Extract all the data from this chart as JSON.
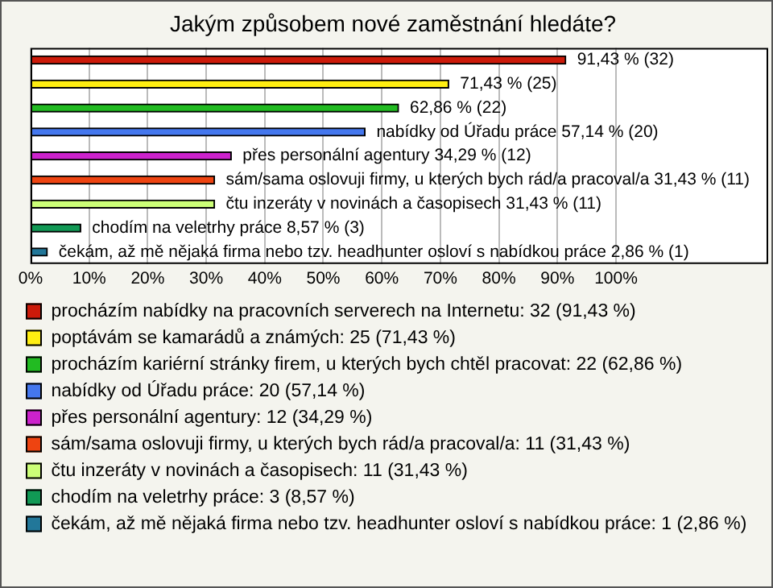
{
  "chart_data": {
    "type": "bar",
    "orientation": "horizontal",
    "title": "Jakým způsobem nové zaměstnání hledáte?",
    "categories": [
      null,
      null,
      null,
      null,
      null,
      null,
      null,
      null,
      null
    ],
    "series": [
      {
        "name": "procházím nabídky na pracovních serverech na Internetu: 32 (91,43 %)",
        "color": "#cc1a0a",
        "values": [
          91.43,
          null,
          null,
          null,
          null,
          null,
          null,
          null,
          null
        ],
        "value_labels": [
          "91,43 % (32)",
          null,
          null,
          null,
          null,
          null,
          null,
          null,
          null
        ]
      },
      {
        "name": "poptávám se kamarádů a známých: 25 (71,43 %)",
        "color": "#ffee11",
        "values": [
          null,
          71.43,
          null,
          null,
          null,
          null,
          null,
          null,
          null
        ],
        "value_labels": [
          null,
          "71,43 % (25)",
          null,
          null,
          null,
          null,
          null,
          null,
          null
        ]
      },
      {
        "name": "procházím kariérní stránky firem, u kterých bych chtěl pracovat: 22 (62,86 %)",
        "color": "#22bb22",
        "values": [
          null,
          null,
          62.86,
          null,
          null,
          null,
          null,
          null,
          null
        ],
        "value_labels": [
          null,
          null,
          "62,86 % (22)",
          null,
          null,
          null,
          null,
          null,
          null
        ]
      },
      {
        "name": "nabídky od Úřadu práce: 20 (57,14 %)",
        "color": "#4477ee",
        "values": [
          null,
          null,
          null,
          57.14,
          null,
          null,
          null,
          null,
          null
        ],
        "value_labels": [
          null,
          null,
          null,
          "nabídky od Úřadu práce 57,14 % (20)",
          null,
          null,
          null,
          null,
          null
        ]
      },
      {
        "name": "přes personální agentury: 12 (34,29 %)",
        "color": "#cc22cc",
        "values": [
          null,
          null,
          null,
          null,
          34.29,
          null,
          null,
          null,
          null
        ],
        "value_labels": [
          null,
          null,
          null,
          null,
          "přes personální agentury 34,29 % (12)",
          null,
          null,
          null,
          null
        ]
      },
      {
        "name": "sám/sama oslovuji firmy, u kterých bych rád/a pracoval/a: 11 (31,43 %)",
        "color": "#ee4411",
        "values": [
          null,
          null,
          null,
          null,
          null,
          31.43,
          null,
          null,
          null
        ],
        "value_labels": [
          null,
          null,
          null,
          null,
          null,
          "sám/sama oslovuji firmy, u kterých bych rád/a pracoval/a 31,43 % (11)",
          null,
          null,
          null
        ]
      },
      {
        "name": "čtu inzeráty v novinách a časopisech: 11 (31,43 %)",
        "color": "#ccff77",
        "values": [
          null,
          null,
          null,
          null,
          null,
          null,
          31.43,
          null,
          null
        ],
        "value_labels": [
          null,
          null,
          null,
          null,
          null,
          null,
          "čtu inzeráty v novinách a časopisech 31,43 % (11)",
          null,
          null
        ]
      },
      {
        "name": "chodím na veletrhy práce: 3 (8,57 %)",
        "color": "#119955",
        "values": [
          null,
          null,
          null,
          null,
          null,
          null,
          null,
          8.57,
          null
        ],
        "value_labels": [
          null,
          null,
          null,
          null,
          null,
          null,
          null,
          "chodím na veletrhy práce 8,57 % (3)",
          null
        ]
      },
      {
        "name": "čekám, až mě nějaká firma nebo tzv. headhunter osloví s nabídkou práce: 1 (2,86 %)",
        "color": "#227799",
        "values": [
          null,
          null,
          null,
          null,
          null,
          null,
          null,
          null,
          2.86
        ],
        "value_labels": [
          null,
          null,
          null,
          null,
          null,
          null,
          null,
          null,
          "čekám, až mě nějaká firma nebo tzv. headhunter osloví s nabídkou práce 2,86 % (1)"
        ]
      }
    ],
    "xlim": [
      0,
      126
    ],
    "xticks": [
      {
        "value": 0,
        "label": "0%"
      },
      {
        "value": 10,
        "label": "10%"
      },
      {
        "value": 20,
        "label": "20%"
      },
      {
        "value": 30,
        "label": "30%"
      },
      {
        "value": 40,
        "label": "40%"
      },
      {
        "value": 50,
        "label": "50%"
      },
      {
        "value": 60,
        "label": "60%"
      },
      {
        "value": 70,
        "label": "70%"
      },
      {
        "value": 80,
        "label": "80%"
      },
      {
        "value": 90,
        "label": "90%"
      },
      {
        "value": 100,
        "label": "100%"
      }
    ],
    "grid": "x",
    "legend": "bottom"
  }
}
